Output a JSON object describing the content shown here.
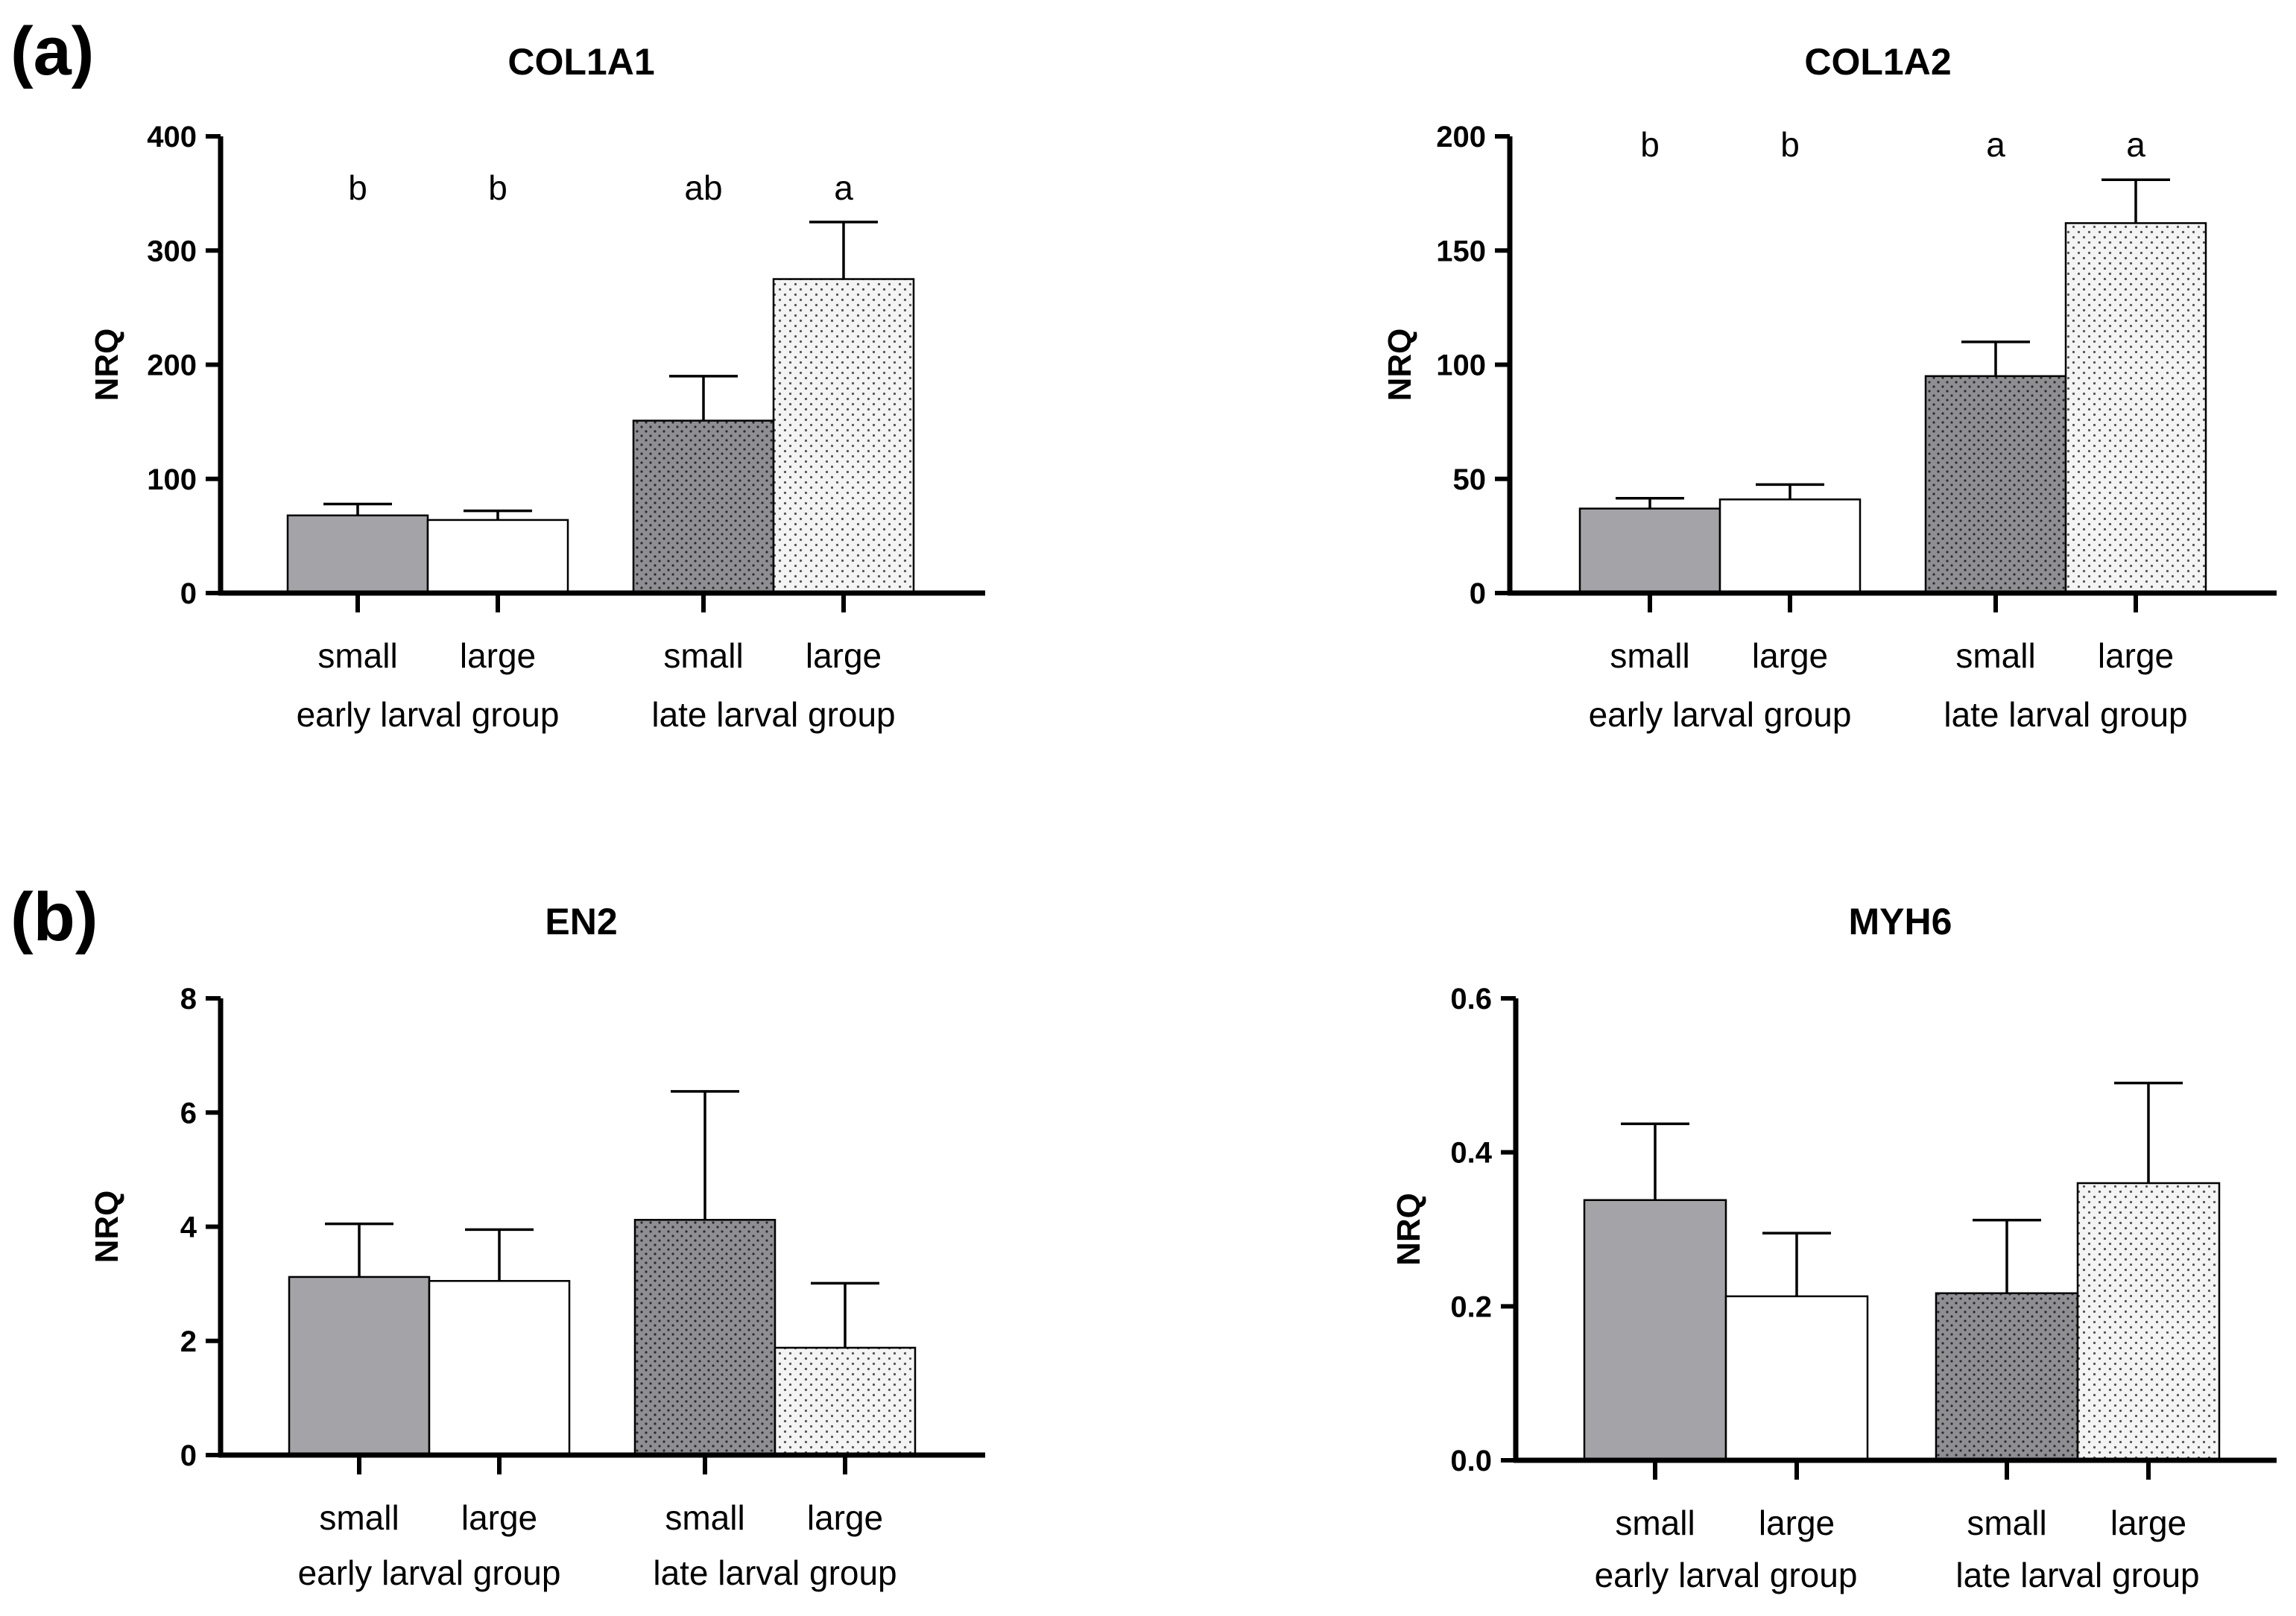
{
  "panel_labels": [
    "(a)",
    "(b)"
  ],
  "colors": {
    "early_small_fill": "#a4a3a8",
    "early_large_fill": "#ffffff",
    "late_small_fill": "#8f8e93",
    "late_large_fill": "#f2f2f2",
    "stroke": "#000000"
  },
  "chart_data": [
    {
      "type": "bar",
      "title": "COL1A1",
      "ylabel": "NRQ",
      "ylim": [
        0,
        400
      ],
      "yticks": [
        "0",
        "100",
        "200",
        "300",
        "400"
      ],
      "categories": [
        "small",
        "large",
        "small",
        "large"
      ],
      "groups": [
        "early larval group",
        "late larval group"
      ],
      "values": [
        68,
        64,
        151,
        275
      ],
      "errors": [
        10,
        8,
        39,
        50
      ],
      "significance": [
        "b",
        "b",
        "ab",
        "a"
      ]
    },
    {
      "type": "bar",
      "title": "COL1A2",
      "ylabel": "NRQ",
      "ylim": [
        0,
        200
      ],
      "yticks": [
        "0",
        "50",
        "100",
        "150",
        "200"
      ],
      "categories": [
        "small",
        "large",
        "small",
        "large"
      ],
      "groups": [
        "early larval group",
        "late larval group"
      ],
      "values": [
        37,
        41,
        95,
        162
      ],
      "errors": [
        4.5,
        6.5,
        15,
        19
      ],
      "significance": [
        "b",
        "b",
        "a",
        "a"
      ]
    },
    {
      "type": "bar",
      "title": "EN2",
      "ylabel": "NRQ",
      "ylim": [
        0,
        8
      ],
      "yticks": [
        "0",
        "2",
        "4",
        "6",
        "8"
      ],
      "categories": [
        "small",
        "large",
        "small",
        "large"
      ],
      "groups": [
        "early larval group",
        "late larval group"
      ],
      "values": [
        3.12,
        3.05,
        4.12,
        1.88
      ],
      "errors": [
        0.93,
        0.9,
        2.25,
        1.13
      ],
      "significance": []
    },
    {
      "type": "bar",
      "title": "MYH6",
      "ylabel": "NRQ",
      "ylim": [
        0,
        0.6
      ],
      "yticks": [
        "0.0",
        "0.2",
        "0.4",
        "0.6"
      ],
      "categories": [
        "small",
        "large",
        "small",
        "large"
      ],
      "groups": [
        "early larval group",
        "late larval group"
      ],
      "values": [
        0.338,
        0.213,
        0.217,
        0.36
      ],
      "errors": [
        0.099,
        0.082,
        0.095,
        0.13
      ],
      "significance": []
    }
  ]
}
